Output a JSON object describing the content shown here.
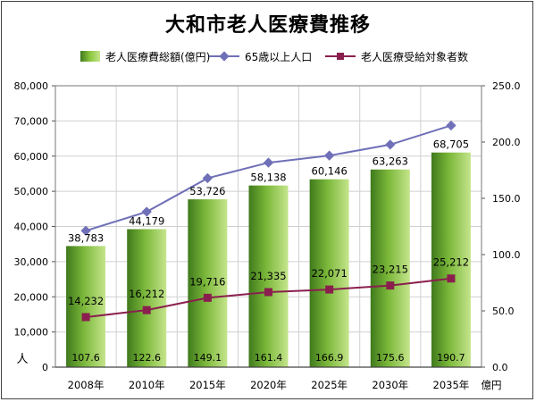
{
  "title": "大和市老人医療費推移",
  "legend": {
    "bar": "老人医療費総額(億円)",
    "line_pop": "65歳以上人口",
    "line_recipients": "老人医療受給対象者数"
  },
  "axis_labels": {
    "left_unit": "人",
    "right_unit": "億円"
  },
  "colors": {
    "bar_dark": "#3f7a1c",
    "bar_light": "#c5e58c",
    "line_pop": "#7070b8",
    "line_recipients": "#8a1f4e"
  },
  "chart_data": {
    "type": "bar",
    "title": "大和市老人医療費推移",
    "categories": [
      "2008年",
      "2010年",
      "2015年",
      "2020年",
      "2025年",
      "2030年",
      "2035年"
    ],
    "series": [
      {
        "name": "老人医療費総額(億円)",
        "type": "bar",
        "axis": "right",
        "values": [
          107.6,
          122.6,
          149.1,
          161.4,
          166.9,
          175.6,
          190.7
        ],
        "labels": [
          "107.6",
          "122.6",
          "149.1",
          "161.4",
          "166.9",
          "175.6",
          "190.7"
        ]
      },
      {
        "name": "65歳以上人口",
        "type": "line",
        "axis": "left",
        "values": [
          38783,
          44179,
          53726,
          58138,
          60146,
          63263,
          68705
        ],
        "labels": [
          "38,783",
          "44,179",
          "53,726",
          "58,138",
          "60,146",
          "63,263",
          "68,705"
        ]
      },
      {
        "name": "老人医療受給対象者数",
        "type": "line",
        "axis": "left",
        "values": [
          14232,
          16212,
          19716,
          21335,
          22071,
          23215,
          25212
        ],
        "labels": [
          "14,232",
          "16,212",
          "19,716",
          "21,335",
          "22,071",
          "23,215",
          "25,212"
        ]
      }
    ],
    "y_left": {
      "range": [
        0,
        80000
      ],
      "ticks": [
        "0",
        "10,000",
        "20,000",
        "30,000",
        "40,000",
        "50,000",
        "60,000",
        "70,000",
        "80,000"
      ],
      "unit": "人"
    },
    "y_right": {
      "range": [
        0,
        250
      ],
      "ticks": [
        "0.0",
        "50.0",
        "100.0",
        "150.0",
        "200.0",
        "250.0"
      ],
      "unit": "億円"
    },
    "grid": true,
    "legend_position": "top"
  }
}
